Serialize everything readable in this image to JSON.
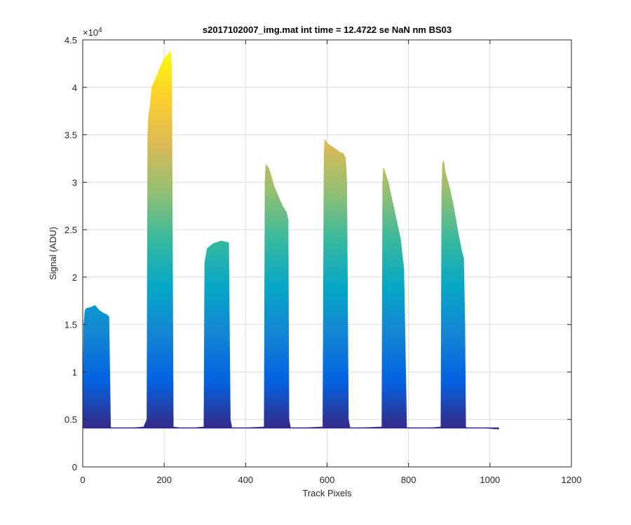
{
  "chart_data": {
    "type": "area",
    "title": "s2017102007_img.mat int time = 12.4722 se  NaN nm BS03",
    "xlabel": "Track Pixels",
    "ylabel": "Signal (ADU)",
    "y_exponent_label": "×10",
    "y_exponent_power": "4",
    "xlim": [
      0,
      1200
    ],
    "ylim": [
      0,
      4.5
    ],
    "y_scale_factor": 10000,
    "xticks": [
      0,
      200,
      400,
      600,
      800,
      1000,
      1200
    ],
    "xtick_labels": [
      "0",
      "200",
      "400",
      "600",
      "800",
      "1000",
      "1200"
    ],
    "yticks": [
      0,
      0.5,
      1,
      1.5,
      2,
      2.5,
      3,
      3.5,
      4,
      4.5
    ],
    "ytick_labels": [
      "0",
      "0.5",
      "1",
      "1.5",
      "2",
      "2.5",
      "3",
      "3.5",
      "4",
      "4.5"
    ],
    "grid": true,
    "baseline": 0.41,
    "colormap": "parula",
    "colormap_stops": [
      "#352a87",
      "#0363e1",
      "#1485d4",
      "#06a7c6",
      "#38b99e",
      "#92bf73",
      "#d9ba56",
      "#fcce2e",
      "#f9fb0e"
    ],
    "x": [
      0,
      3,
      6,
      10,
      20,
      30,
      40,
      50,
      60,
      64,
      66,
      68,
      70,
      80,
      100,
      120,
      150,
      158,
      160,
      162,
      166,
      170,
      180,
      190,
      200,
      205,
      210,
      215,
      218,
      222,
      240,
      270,
      298,
      300,
      302,
      306,
      320,
      340,
      350,
      358,
      362,
      366,
      400,
      446,
      448,
      450,
      456,
      460,
      470,
      480,
      490,
      500,
      504,
      506,
      510,
      540,
      590,
      593,
      595,
      598,
      603,
      610,
      620,
      630,
      640,
      645,
      648,
      652,
      656,
      680,
      735,
      737,
      739,
      742,
      750,
      760,
      770,
      780,
      785,
      788,
      791,
      795,
      820,
      850,
      880,
      882,
      884,
      886,
      890,
      900,
      910,
      920,
      930,
      935,
      938,
      940,
      943,
      950,
      990,
      1020,
      1022
    ],
    "y": [
      0.41,
      1.5,
      1.65,
      1.67,
      1.68,
      1.7,
      1.65,
      1.62,
      1.6,
      1.58,
      1.0,
      0.42,
      0.41,
      0.41,
      0.41,
      0.41,
      0.42,
      0.5,
      3.5,
      3.7,
      3.8,
      4.0,
      4.1,
      4.2,
      4.3,
      4.32,
      4.35,
      4.38,
      4.2,
      0.42,
      0.41,
      0.41,
      0.42,
      2.15,
      2.2,
      2.3,
      2.35,
      2.38,
      2.37,
      2.36,
      0.5,
      0.41,
      0.41,
      0.42,
      3.0,
      3.18,
      3.15,
      3.1,
      2.95,
      2.85,
      2.75,
      2.68,
      2.6,
      0.5,
      0.41,
      0.41,
      0.42,
      3.3,
      3.45,
      3.42,
      3.4,
      3.38,
      3.35,
      3.32,
      3.3,
      3.25,
      3.0,
      0.5,
      0.41,
      0.41,
      0.42,
      3.0,
      3.15,
      3.1,
      3.0,
      2.8,
      2.6,
      2.4,
      2.2,
      2.1,
      1.4,
      0.41,
      0.41,
      0.41,
      0.42,
      2.9,
      3.2,
      3.22,
      3.1,
      2.95,
      2.75,
      2.5,
      2.28,
      2.2,
      1.5,
      0.42,
      0.41,
      0.41,
      0.41,
      0.4,
      0.4
    ]
  }
}
